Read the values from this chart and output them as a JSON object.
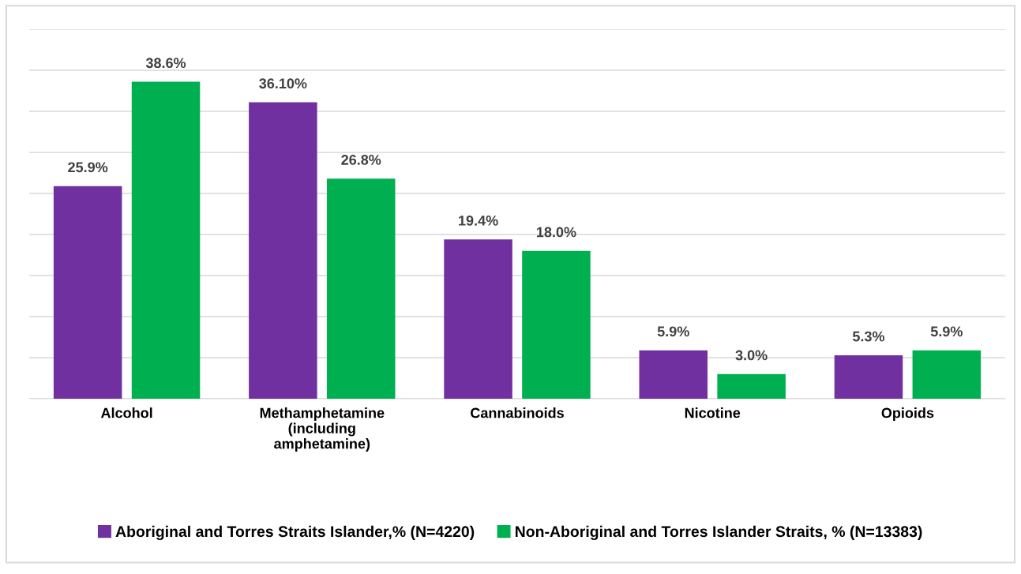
{
  "chart_data": {
    "type": "bar",
    "categories": [
      "Alcohol",
      "Methamphetamine\n(including\namphetamine)",
      "Cannabinoids",
      "Nicotine",
      "Opioids"
    ],
    "series": [
      {
        "name": "Aboriginal and Torres Straits Islander,% (N=4220)",
        "color": "#7030a0",
        "values": [
          25.9,
          36.1,
          19.4,
          5.9,
          5.3
        ],
        "value_labels": [
          "25.9%",
          "36.10%",
          "19.4%",
          "5.9%",
          "5.3%"
        ]
      },
      {
        "name": "Non-Aboriginal and Torres Islander Straits, % (N=13383)",
        "color": "#00b050",
        "values": [
          38.6,
          26.8,
          18.0,
          3.0,
          5.9
        ],
        "value_labels": [
          "38.6%",
          "26.8%",
          "18.0%",
          "3.0%",
          "5.9%"
        ]
      }
    ],
    "ylim": [
      0,
      45
    ],
    "yticks": [
      {
        "value": 0,
        "label": null
      },
      {
        "value": 5,
        "label": null
      },
      {
        "value": 10,
        "label": null
      },
      {
        "value": 15,
        "label": null
      },
      {
        "value": 20,
        "label": null
      },
      {
        "value": 25,
        "label": null
      },
      {
        "value": 30,
        "label": null
      },
      {
        "value": 35,
        "label": null
      },
      {
        "value": 40,
        "label": null
      },
      {
        "value": 45,
        "label": null
      }
    ],
    "grid": "y",
    "legend": "bottom",
    "tick_labels": "x"
  }
}
